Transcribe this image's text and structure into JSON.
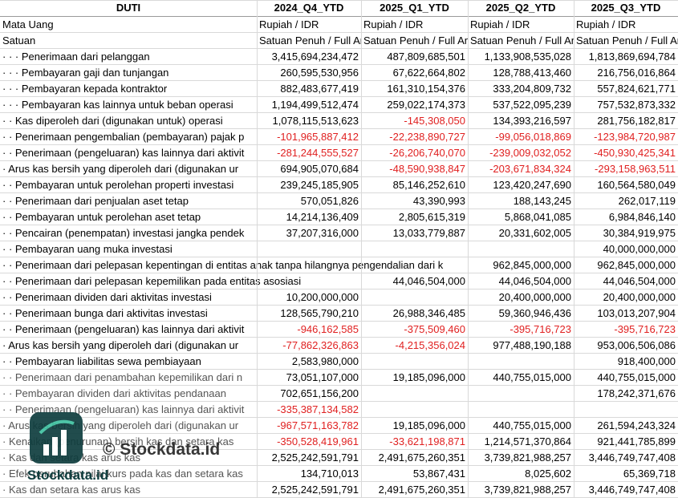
{
  "header": [
    "DUTI",
    "2024_Q4_YTD",
    "2025_Q1_YTD",
    "2025_Q2_YTD",
    "2025_Q3_YTD"
  ],
  "rows": [
    [
      "Mata Uang",
      "Rupiah / IDR",
      "Rupiah / IDR",
      "Rupiah / IDR",
      "Rupiah / IDR"
    ],
    [
      "Satuan",
      "Satuan Penuh / Full Amount",
      "Satuan Penuh / Full Amount",
      "Satuan Penuh / Full Amount",
      "Satuan Penuh / Full Amount"
    ],
    [
      "· · · Penerimaan dari pelanggan",
      "3,415,694,234,472",
      "487,809,685,501",
      "1,133,908,535,028",
      "1,813,869,694,784"
    ],
    [
      "· · · Pembayaran gaji dan tunjangan",
      "260,595,530,956",
      "67,622,664,802",
      "128,788,413,460",
      "216,756,016,864"
    ],
    [
      "· · · Pembayaran kepada kontraktor",
      "882,483,677,419",
      "161,310,154,376",
      "333,204,809,732",
      "557,824,621,771"
    ],
    [
      "· · · Pembayaran kas lainnya untuk beban operasi",
      "1,194,499,512,474",
      "259,022,174,373",
      "537,522,095,239",
      "757,532,873,332"
    ],
    [
      "· · Kas diperoleh dari (digunakan untuk) operasi",
      "1,078,115,513,623",
      "-145,308,050",
      "134,393,216,597",
      "281,756,182,817"
    ],
    [
      "· · Penerimaan pengembalian (pembayaran) pajak p",
      "-101,965,887,412",
      "-22,238,890,727",
      "-99,056,018,869",
      "-123,984,720,987"
    ],
    [
      "· · Penerimaan (pengeluaran) kas lainnya dari aktivit",
      "-281,244,555,527",
      "-26,206,740,070",
      "-239,009,032,052",
      "-450,930,425,341"
    ],
    [
      "· Arus kas bersih yang diperoleh dari (digunakan ur",
      "694,905,070,684",
      "-48,590,938,847",
      "-203,671,834,324",
      "-293,158,963,511"
    ],
    [
      "· · Pembayaran untuk perolehan properti investasi",
      "239,245,185,905",
      "85,146,252,610",
      "123,420,247,690",
      "160,564,580,049"
    ],
    [
      "· · Penerimaan dari penjualan aset tetap",
      "570,051,826",
      "43,390,993",
      "188,143,245",
      "262,017,119"
    ],
    [
      "· · Pembayaran untuk perolehan aset tetap",
      "14,214,136,409",
      "2,805,615,319",
      "5,868,041,085",
      "6,984,846,140"
    ],
    [
      "· · Pencairan (penempatan) investasi jangka pendek",
      "37,207,316,000",
      "13,033,779,887",
      "20,331,602,005",
      "30,384,919,975"
    ],
    [
      "· · Pembayaran uang muka investasi",
      null,
      null,
      null,
      "40,000,000,000"
    ],
    [
      "· · Penerimaan dari pelepasan kepentingan di entitas anak tanpa hilangnya pengendalian dari k",
      null,
      null,
      "962,845,000,000",
      "962,845,000,000"
    ],
    [
      "· · Penerimaan dari pelepasan kepemilikan pada entitas asosiasi",
      null,
      "44,046,504,000",
      "44,046,504,000",
      "44,046,504,000"
    ],
    [
      "· · Penerimaan dividen dari aktivitas investasi",
      "10,200,000,000",
      null,
      "20,400,000,000",
      "20,400,000,000"
    ],
    [
      "· · Penerimaan bunga dari aktivitas investasi",
      "128,565,790,210",
      "26,988,346,485",
      "59,360,946,436",
      "103,013,207,904"
    ],
    [
      "· · Penerimaan (pengeluaran) kas lainnya dari aktivit",
      "-946,162,585",
      "-375,509,460",
      "-395,716,723",
      "-395,716,723"
    ],
    [
      "· Arus kas bersih yang diperoleh dari (digunakan ur",
      "-77,862,326,863",
      "-4,215,356,024",
      "977,488,190,188",
      "953,006,506,086"
    ],
    [
      "· · Pembayaran liabilitas sewa pembiayaan",
      "2,583,980,000",
      null,
      null,
      "918,400,000"
    ],
    [
      "· · Penerimaan dari penambahan kepemilikan dari n",
      "73,051,107,000",
      "19,185,096,000",
      "440,755,015,000",
      "440,755,015,000"
    ],
    [
      "· · Pembayaran dividen dari aktivitas pendanaan",
      "702,651,156,200",
      null,
      null,
      "178,242,371,676"
    ],
    [
      "· · Penerimaan (pengeluaran) kas lainnya dari aktivit",
      "-335,387,134,582",
      null,
      null,
      null
    ],
    [
      "· Arus kas bersih yang diperoleh dari (digunakan ur",
      "-967,571,163,782",
      "19,185,096,000",
      "440,755,015,000",
      "261,594,243,324"
    ],
    [
      "· Kenaikan (penurunan) bersih kas dan setara kas",
      "-350,528,419,961",
      "-33,621,198,871",
      "1,214,571,370,864",
      "921,441,785,899"
    ],
    [
      "· Kas dan setara kas arus kas",
      "2,525,242,591,791",
      "2,491,675,260,351",
      "3,739,821,988,257",
      "3,446,749,747,408"
    ],
    [
      "· Efek perubahan nilai kurs pada kas dan setara kas",
      "134,710,013",
      "53,867,431",
      "8,025,602",
      "65,369,718"
    ],
    [
      "· Kas dan setara kas arus kas",
      "2,525,242,591,791",
      "2,491,675,260,351",
      "3,739,821,988,257",
      "3,446,749,747,408"
    ]
  ],
  "watermark": {
    "brand": "Stockdata.id",
    "copyright": "© Stockdata.id"
  }
}
